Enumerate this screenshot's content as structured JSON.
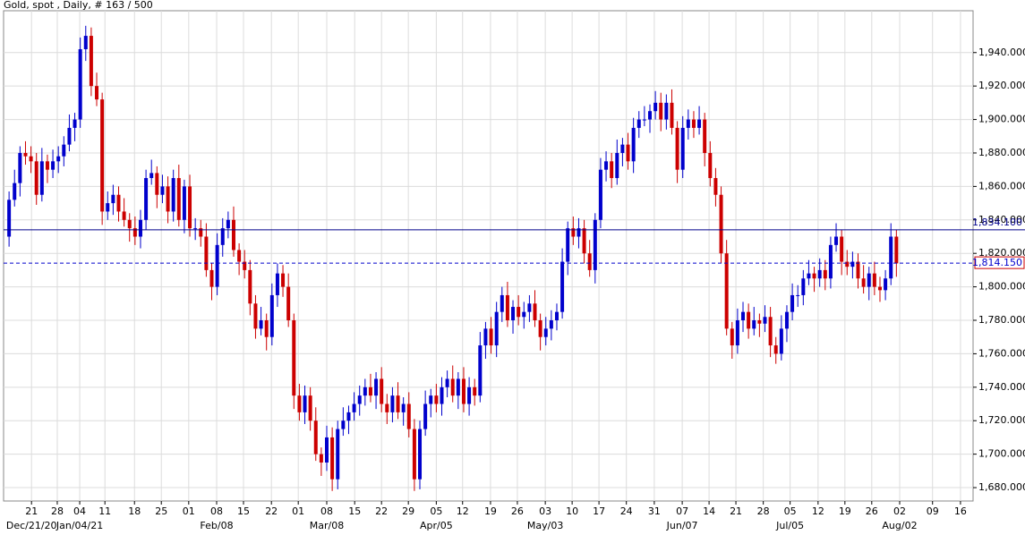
{
  "chart_data": {
    "type": "candlestick",
    "title": "Gold, spot , Daily, # 163 / 500",
    "up_color": "#0000cc",
    "down_color": "#cc0000",
    "grid": true,
    "ylim": [
      1672,
      1965
    ],
    "xlim": [
      -1.0,
      176.0
    ],
    "yticks": [
      {
        "value": 1680,
        "label": "1,680.000"
      },
      {
        "value": 1700,
        "label": "1,700.000"
      },
      {
        "value": 1720,
        "label": "1,720.000"
      },
      {
        "value": 1740,
        "label": "1,740.000"
      },
      {
        "value": 1760,
        "label": "1,760.000"
      },
      {
        "value": 1780,
        "label": "1,780.000"
      },
      {
        "value": 1800,
        "label": "1,800.000"
      },
      {
        "value": 1820,
        "label": "1,820.000"
      },
      {
        "value": 1840,
        "label": "1,840.000"
      },
      {
        "value": 1860,
        "label": "1,860.000"
      },
      {
        "value": 1880,
        "label": "1,880.000"
      },
      {
        "value": 1900,
        "label": "1,900.000"
      },
      {
        "value": 1920,
        "label": "1,920.000"
      },
      {
        "value": 1940,
        "label": "1,940.000"
      }
    ],
    "xticks": [
      {
        "value": 4.1,
        "label": "21"
      },
      {
        "value": 8.8,
        "label": "28"
      },
      {
        "value": 12.9,
        "label": "04"
      },
      {
        "value": 17.5,
        "label": "11"
      },
      {
        "value": 22.9,
        "label": "18"
      },
      {
        "value": 27.8,
        "label": "25"
      },
      {
        "value": 32.8,
        "label": "01"
      },
      {
        "value": 37.9,
        "label": "08"
      },
      {
        "value": 42.8,
        "label": "15"
      },
      {
        "value": 47.9,
        "label": "22"
      },
      {
        "value": 52.8,
        "label": "01"
      },
      {
        "value": 58.0,
        "label": "08"
      },
      {
        "value": 63.1,
        "label": "15"
      },
      {
        "value": 68.0,
        "label": "22"
      },
      {
        "value": 72.9,
        "label": "29"
      },
      {
        "value": 78.0,
        "label": "05"
      },
      {
        "value": 82.8,
        "label": "12"
      },
      {
        "value": 87.9,
        "label": "19"
      },
      {
        "value": 92.8,
        "label": "26"
      },
      {
        "value": 97.9,
        "label": "03"
      },
      {
        "value": 102.8,
        "label": "10"
      },
      {
        "value": 107.7,
        "label": "17"
      },
      {
        "value": 112.7,
        "label": "24"
      },
      {
        "value": 117.8,
        "label": "31"
      },
      {
        "value": 122.9,
        "label": "07"
      },
      {
        "value": 127.8,
        "label": "14"
      },
      {
        "value": 132.7,
        "label": "21"
      },
      {
        "value": 137.7,
        "label": "28"
      },
      {
        "value": 142.6,
        "label": "05"
      },
      {
        "value": 147.7,
        "label": "12"
      },
      {
        "value": 152.6,
        "label": "19"
      },
      {
        "value": 157.5,
        "label": "26"
      },
      {
        "value": 162.6,
        "label": "02"
      },
      {
        "value": 168.6,
        "label": "09"
      },
      {
        "value": 173.7,
        "label": "16"
      }
    ],
    "xticks_months": [
      {
        "value": 4.1,
        "label": "Dec/21/20"
      },
      {
        "value": 12.9,
        "label": "Jan/04/21"
      },
      {
        "value": 37.9,
        "label": "Feb/08"
      },
      {
        "value": 58.0,
        "label": "Mar/08"
      },
      {
        "value": 78.0,
        "label": "Apr/05"
      },
      {
        "value": 97.9,
        "label": "May/03"
      },
      {
        "value": 122.9,
        "label": "Jun/07"
      },
      {
        "value": 142.6,
        "label": "Jul/05"
      },
      {
        "value": 162.6,
        "label": "Aug/02"
      }
    ],
    "hlines": [
      {
        "value": 1834.1,
        "label": "1,834.100",
        "color": "#00008b",
        "style": "solid"
      },
      {
        "value": 1814.15,
        "label": "1,814.150",
        "color": "#0000cc",
        "style": "dashed",
        "label_border": "#cc0000"
      }
    ],
    "open": [
      1830,
      1852,
      1862,
      1880,
      1878,
      1875,
      1855,
      1875,
      1870,
      1875,
      1878,
      1885,
      1895,
      1900,
      1942,
      1950,
      1920,
      1912,
      1845,
      1850,
      1855,
      1845,
      1840,
      1835,
      1830,
      1840,
      1865,
      1868,
      1855,
      1860,
      1845,
      1865,
      1840,
      1860,
      1835,
      1835,
      1830,
      1810,
      1800,
      1825,
      1835,
      1840,
      1822,
      1815,
      1810,
      1790,
      1775,
      1780,
      1770,
      1795,
      1808,
      1800,
      1780,
      1735,
      1725,
      1735,
      1720,
      1700,
      1695,
      1710,
      1685,
      1715,
      1720,
      1725,
      1730,
      1735,
      1740,
      1735,
      1745,
      1730,
      1725,
      1735,
      1725,
      1730,
      1715,
      1685,
      1715,
      1730,
      1735,
      1730,
      1740,
      1745,
      1735,
      1745,
      1730,
      1740,
      1735,
      1765,
      1775,
      1765,
      1785,
      1795,
      1780,
      1788,
      1782,
      1785,
      1790,
      1780,
      1770,
      1775,
      1780,
      1785,
      1815,
      1835,
      1830,
      1835,
      1820,
      1810,
      1840,
      1870,
      1875,
      1865,
      1880,
      1885,
      1875,
      1895,
      1900,
      1900,
      1905,
      1910,
      1900,
      1910,
      1895,
      1870,
      1895,
      1900,
      1895,
      1900,
      1880,
      1865,
      1855,
      1820,
      1775,
      1765,
      1780,
      1785,
      1775,
      1780,
      1778,
      1782,
      1765,
      1760,
      1775,
      1785,
      1795,
      1795,
      1805,
      1808,
      1805,
      1810,
      1805,
      1825,
      1830,
      1815,
      1812,
      1815,
      1805,
      1800,
      1808,
      1800,
      1798,
      1805,
      1830
    ],
    "high": [
      1857,
      1870,
      1884,
      1887,
      1884,
      1880,
      1883,
      1879,
      1882,
      1884,
      1890,
      1903,
      1904,
      1949,
      1956,
      1955,
      1928,
      1916,
      1857,
      1861,
      1860,
      1853,
      1844,
      1842,
      1846,
      1870,
      1876,
      1872,
      1867,
      1866,
      1870,
      1873,
      1864,
      1867,
      1841,
      1840,
      1838,
      1814,
      1832,
      1841,
      1845,
      1848,
      1826,
      1822,
      1816,
      1795,
      1788,
      1784,
      1802,
      1814,
      1813,
      1808,
      1784,
      1742,
      1741,
      1740,
      1728,
      1704,
      1717,
      1716,
      1720,
      1728,
      1729,
      1737,
      1741,
      1745,
      1748,
      1749,
      1752,
      1736,
      1740,
      1743,
      1734,
      1737,
      1721,
      1720,
      1738,
      1739,
      1742,
      1746,
      1750,
      1753,
      1749,
      1752,
      1746,
      1745,
      1773,
      1779,
      1782,
      1791,
      1800,
      1803,
      1792,
      1795,
      1791,
      1795,
      1798,
      1784,
      1782,
      1786,
      1790,
      1823,
      1839,
      1842,
      1841,
      1840,
      1828,
      1844,
      1877,
      1881,
      1880,
      1888,
      1889,
      1892,
      1901,
      1905,
      1908,
      1909,
      1917,
      1916,
      1915,
      1918,
      1899,
      1902,
      1906,
      1905,
      1908,
      1904,
      1887,
      1871,
      1860,
      1828,
      1779,
      1787,
      1791,
      1790,
      1788,
      1784,
      1789,
      1788,
      1770,
      1783,
      1789,
      1802,
      1801,
      1810,
      1816,
      1812,
      1817,
      1816,
      1830,
      1838,
      1834,
      1822,
      1821,
      1820,
      1813,
      1812,
      1815,
      1806,
      1810,
      1838,
      1834
    ],
    "low": [
      1824,
      1848,
      1854,
      1873,
      1868,
      1849,
      1851,
      1862,
      1865,
      1868,
      1872,
      1881,
      1887,
      1895,
      1935,
      1914,
      1908,
      1837,
      1840,
      1843,
      1839,
      1836,
      1827,
      1825,
      1823,
      1834,
      1861,
      1847,
      1850,
      1838,
      1839,
      1836,
      1832,
      1830,
      1828,
      1824,
      1806,
      1792,
      1795,
      1818,
      1829,
      1818,
      1807,
      1805,
      1783,
      1769,
      1771,
      1762,
      1765,
      1788,
      1794,
      1776,
      1727,
      1720,
      1718,
      1714,
      1696,
      1687,
      1690,
      1678,
      1679,
      1711,
      1712,
      1720,
      1723,
      1729,
      1731,
      1727,
      1725,
      1718,
      1719,
      1721,
      1717,
      1710,
      1678,
      1679,
      1711,
      1722,
      1725,
      1723,
      1734,
      1731,
      1727,
      1725,
      1723,
      1729,
      1731,
      1757,
      1760,
      1758,
      1779,
      1776,
      1772,
      1777,
      1775,
      1779,
      1776,
      1762,
      1765,
      1768,
      1774,
      1781,
      1807,
      1825,
      1823,
      1814,
      1806,
      1802,
      1835,
      1863,
      1859,
      1861,
      1872,
      1870,
      1868,
      1889,
      1896,
      1892,
      1900,
      1893,
      1894,
      1891,
      1862,
      1865,
      1888,
      1889,
      1891,
      1872,
      1860,
      1848,
      1814,
      1771,
      1757,
      1760,
      1773,
      1769,
      1771,
      1770,
      1773,
      1758,
      1754,
      1756,
      1767,
      1780,
      1788,
      1789,
      1801,
      1797,
      1800,
      1798,
      1799,
      1821,
      1807,
      1807,
      1805,
      1799,
      1796,
      1792,
      1795,
      1791,
      1792,
      1801,
      1806
    ],
    "close": [
      1852,
      1862,
      1880,
      1878,
      1875,
      1855,
      1875,
      1870,
      1875,
      1878,
      1885,
      1895,
      1900,
      1942,
      1950,
      1920,
      1912,
      1845,
      1850,
      1855,
      1845,
      1840,
      1835,
      1830,
      1840,
      1865,
      1868,
      1855,
      1860,
      1845,
      1865,
      1840,
      1860,
      1835,
      1835,
      1830,
      1810,
      1800,
      1825,
      1835,
      1840,
      1822,
      1815,
      1810,
      1790,
      1775,
      1780,
      1770,
      1795,
      1808,
      1800,
      1780,
      1735,
      1725,
      1735,
      1720,
      1700,
      1695,
      1710,
      1685,
      1715,
      1720,
      1725,
      1730,
      1735,
      1740,
      1735,
      1745,
      1730,
      1725,
      1735,
      1725,
      1730,
      1715,
      1685,
      1715,
      1730,
      1735,
      1730,
      1740,
      1745,
      1735,
      1745,
      1730,
      1740,
      1735,
      1765,
      1775,
      1765,
      1785,
      1795,
      1780,
      1788,
      1782,
      1785,
      1790,
      1780,
      1770,
      1775,
      1780,
      1785,
      1815,
      1835,
      1830,
      1835,
      1820,
      1810,
      1840,
      1870,
      1875,
      1865,
      1880,
      1885,
      1875,
      1895,
      1900,
      1900,
      1905,
      1910,
      1900,
      1910,
      1895,
      1870,
      1895,
      1900,
      1895,
      1900,
      1880,
      1865,
      1855,
      1820,
      1775,
      1765,
      1780,
      1785,
      1775,
      1780,
      1778,
      1782,
      1765,
      1760,
      1775,
      1785,
      1795,
      1795,
      1805,
      1808,
      1805,
      1810,
      1805,
      1825,
      1830,
      1815,
      1812,
      1815,
      1805,
      1800,
      1808,
      1800,
      1798,
      1805,
      1830,
      1814
    ]
  }
}
